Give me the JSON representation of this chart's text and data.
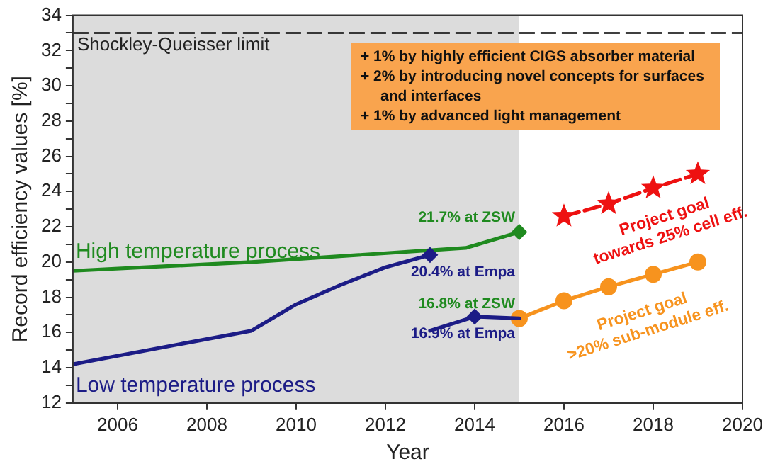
{
  "chart_data": {
    "type": "line",
    "xlabel": "Year",
    "ylabel": "Record efficiency values [%]",
    "xlim": [
      2005,
      2020
    ],
    "xticks": [
      2006,
      2008,
      2010,
      2012,
      2014,
      2016,
      2018,
      2020
    ],
    "ylim": [
      12,
      34
    ],
    "yticks": [
      12,
      {
        "value": 13,
        "label": null
      },
      14,
      {
        "value": 15,
        "label": null
      },
      16,
      {
        "value": 17,
        "label": null
      },
      18,
      {
        "value": 19,
        "label": null
      },
      20,
      {
        "value": 21,
        "label": null
      },
      22,
      {
        "value": 23,
        "label": null
      },
      24,
      {
        "value": 25,
        "label": null
      },
      26,
      {
        "value": 27,
        "label": null
      },
      28,
      {
        "value": 29,
        "label": null
      },
      30,
      {
        "value": 31,
        "label": null
      },
      32,
      {
        "value": 33,
        "label": null
      },
      34
    ],
    "grid": false,
    "legend": false,
    "bands": [
      {
        "axis": "x",
        "from": 2005,
        "to": 2015,
        "color": "#dcdcdc"
      }
    ],
    "ref_lines": [
      {
        "axis": "y",
        "value": 33,
        "label": "Shockley-Queisser limit",
        "color": "#000000",
        "line_style": "dashed"
      }
    ],
    "annotations": [
      "+ 1% by highly efficient CIGS absorber material",
      "+ 2% by introducing novel concepts for surfaces and interfaces",
      "+ 1% by advanced light management",
      {
        "text": "16.8% at ZSW",
        "x": 2015,
        "y": 16.8
      }
    ],
    "series": [
      {
        "name": "High temperature process",
        "color": "#1f8a1f",
        "marker": "none",
        "line_style": "solid",
        "x": [
          2005,
          2009,
          2013.8,
          2015
        ],
        "values": [
          19.5,
          20.0,
          20.8,
          21.7
        ]
      },
      {
        "name": "Low temperature process",
        "color": "#1c1c86",
        "marker": "none",
        "line_style": "solid",
        "x": [
          2005,
          2009,
          2010,
          2011,
          2012,
          2013
        ],
        "values": [
          14.2,
          16.1,
          17.6,
          18.7,
          19.7,
          20.4
        ]
      },
      {
        "color": "#1c1c86",
        "marker": "none",
        "line_style": "solid",
        "x": [
          2013,
          2014,
          2015
        ],
        "values": [
          16.1,
          16.9,
          16.8
        ]
      },
      {
        "name": "Project goal\ntowards 25% cell eff.",
        "color": "#ee1111",
        "marker": "star",
        "line_style": "dashed",
        "x": [
          2016,
          2017,
          2018,
          2019
        ],
        "values": [
          22.6,
          23.3,
          24.2,
          25.0
        ]
      },
      {
        "name": "Project goal\n>20% sub-module eff.",
        "color": "#f7931e",
        "marker": "circle",
        "line_style": "solid",
        "x": [
          2015,
          2016,
          2017,
          2018,
          2019
        ],
        "values": [
          16.8,
          17.8,
          18.6,
          19.3,
          20.0
        ]
      },
      {
        "type": "scatter",
        "color": "#1f8a1f",
        "marker": "diamond",
        "x": [
          2015
        ],
        "values": [
          21.7
        ],
        "value_labels": [
          "21.7% at ZSW"
        ]
      },
      {
        "type": "scatter",
        "color": "#1c1c86",
        "marker": "diamond",
        "x": [
          2013
        ],
        "values": [
          20.4
        ],
        "value_labels": [
          "20.4% at Empa"
        ]
      },
      {
        "type": "scatter",
        "color": "#1c1c86",
        "marker": "diamond",
        "x": [
          2014
        ],
        "values": [
          16.9
        ],
        "value_labels": [
          "16.9% at Empa"
        ]
      }
    ]
  }
}
